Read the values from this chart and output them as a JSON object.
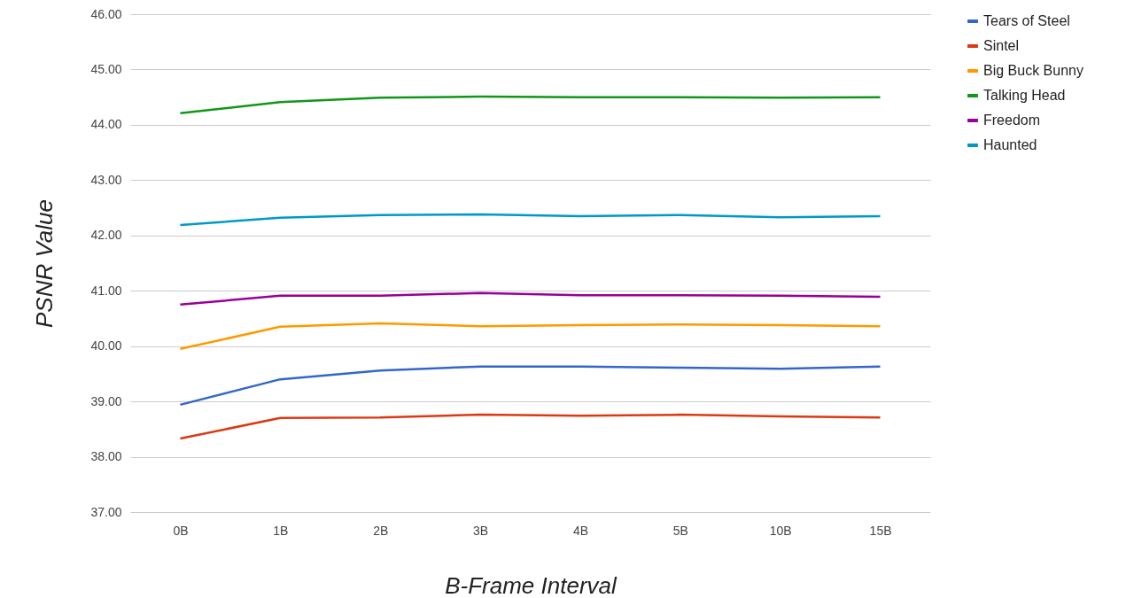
{
  "chart_data": {
    "type": "line",
    "xlabel": "B-Frame Interval",
    "ylabel": "PSNR Value",
    "categories": [
      "0B",
      "1B",
      "2B",
      "3B",
      "4B",
      "5B",
      "10B",
      "15B"
    ],
    "series": [
      {
        "name": "Tears of Steel",
        "color": "#3366cc",
        "values": [
          38.94,
          39.4,
          39.56,
          39.63,
          39.63,
          39.61,
          39.59,
          39.63
        ]
      },
      {
        "name": "Sintel",
        "color": "#dc3912",
        "values": [
          38.33,
          38.7,
          38.71,
          38.76,
          38.74,
          38.76,
          38.73,
          38.71
        ]
      },
      {
        "name": "Big Buck Bunny",
        "color": "#ff9900",
        "values": [
          39.95,
          40.35,
          40.41,
          40.36,
          40.38,
          40.39,
          40.38,
          40.36
        ]
      },
      {
        "name": "Talking Head",
        "color": "#109618",
        "values": [
          44.21,
          44.41,
          44.49,
          44.51,
          44.5,
          44.5,
          44.49,
          44.5
        ]
      },
      {
        "name": "Freedom",
        "color": "#990099",
        "values": [
          40.75,
          40.91,
          40.91,
          40.96,
          40.92,
          40.92,
          40.91,
          40.89
        ]
      },
      {
        "name": "Haunted",
        "color": "#0099c6",
        "values": [
          42.19,
          42.32,
          42.37,
          42.38,
          42.35,
          42.37,
          42.33,
          42.35
        ]
      }
    ],
    "ylim": [
      37,
      46
    ],
    "yticks": [
      {
        "value": 37,
        "label": "37.00"
      },
      {
        "value": 38,
        "label": "38.00"
      },
      {
        "value": 39,
        "label": "39.00"
      },
      {
        "value": 40,
        "label": "40.00"
      },
      {
        "value": 41,
        "label": "41.00"
      },
      {
        "value": 42,
        "label": "42.00"
      },
      {
        "value": 43,
        "label": "43.00"
      },
      {
        "value": 44,
        "label": "44.00"
      },
      {
        "value": 45,
        "label": "45.00"
      },
      {
        "value": 46,
        "label": "46.00"
      }
    ],
    "grid": "y",
    "legend": "top right",
    "marker": "none",
    "line_style": "solid"
  }
}
